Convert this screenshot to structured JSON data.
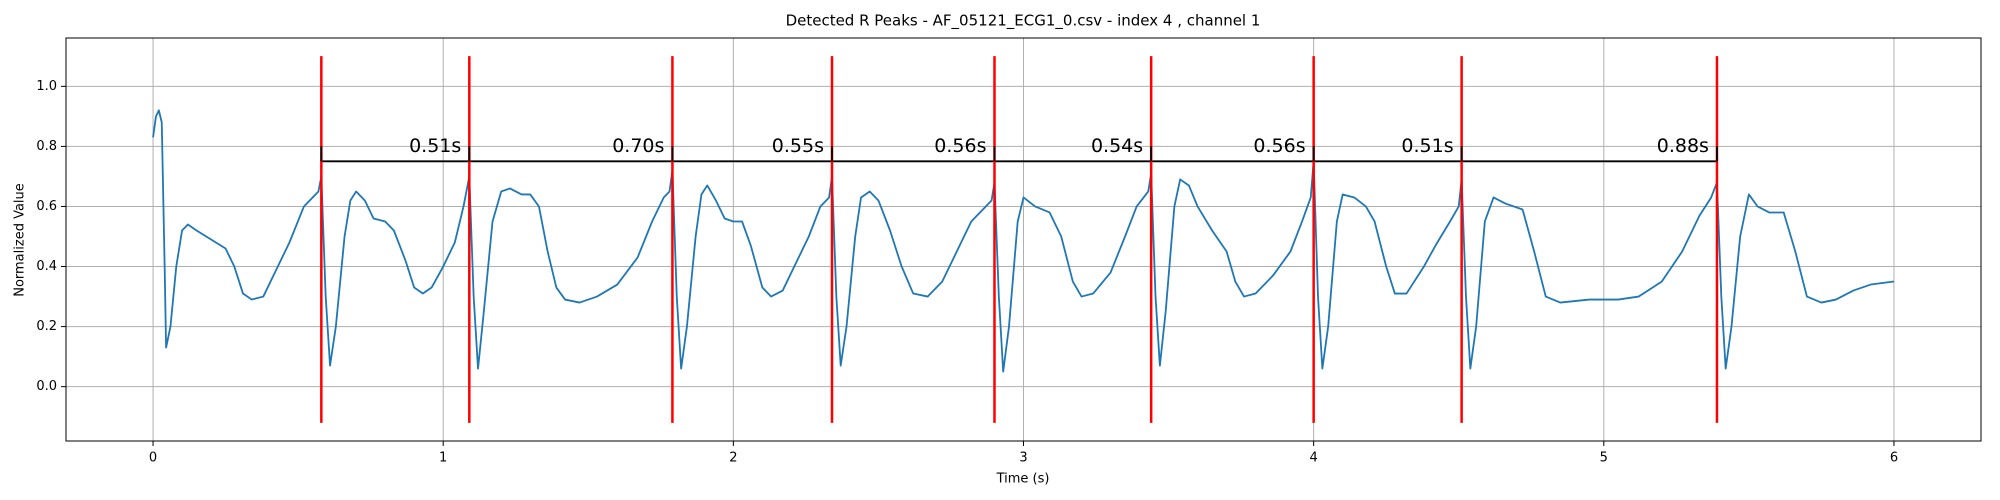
{
  "chart_data": {
    "type": "line",
    "title": "Detected R Peaks - AF_05121_ECG1_0.csv - index 4 , channel 1",
    "xlabel": "Time (s)",
    "ylabel": "Normalized Value",
    "xlim": [
      -0.3,
      6.3
    ],
    "ylim": [
      -0.181,
      1.161
    ],
    "xticks": [
      0,
      1,
      2,
      3,
      4,
      5,
      6
    ],
    "yticks": [
      {
        "value": 0,
        "label": "0.0"
      },
      0.2,
      0.4,
      0.6,
      0.8,
      {
        "value": 1,
        "label": "1.0"
      }
    ],
    "grid": true,
    "x": [
      0,
      0.01,
      0.02,
      0.03,
      0.04,
      0.045,
      0.06,
      0.08,
      0.1,
      0.12,
      0.15,
      0.2,
      0.25,
      0.28,
      0.31,
      0.34,
      0.38,
      0.42,
      0.47,
      0.52,
      0.55,
      0.57,
      0.58,
      0.595,
      0.61,
      0.63,
      0.66,
      0.68,
      0.7,
      0.73,
      0.76,
      0.8,
      0.83,
      0.87,
      0.9,
      0.93,
      0.96,
      1.0,
      1.04,
      1.07,
      1.09,
      1.105,
      1.12,
      1.14,
      1.17,
      1.2,
      1.23,
      1.27,
      1.3,
      1.33,
      1.36,
      1.39,
      1.42,
      1.47,
      1.53,
      1.6,
      1.67,
      1.72,
      1.76,
      1.78,
      1.79,
      1.805,
      1.82,
      1.84,
      1.87,
      1.89,
      1.91,
      1.94,
      1.97,
      2.0,
      2.03,
      2.06,
      2.1,
      2.13,
      2.17,
      2.22,
      2.26,
      2.3,
      2.33,
      2.34,
      2.355,
      2.37,
      2.39,
      2.42,
      2.44,
      2.47,
      2.5,
      2.54,
      2.58,
      2.62,
      2.67,
      2.72,
      2.77,
      2.82,
      2.87,
      2.89,
      2.9,
      2.915,
      2.93,
      2.95,
      2.98,
      3.0,
      3.04,
      3.09,
      3.13,
      3.17,
      3.2,
      3.24,
      3.3,
      3.35,
      3.39,
      3.43,
      3.44,
      3.455,
      3.47,
      3.49,
      3.52,
      3.54,
      3.57,
      3.6,
      3.65,
      3.7,
      3.73,
      3.76,
      3.8,
      3.86,
      3.92,
      3.96,
      3.99,
      4.0,
      4.015,
      4.03,
      4.05,
      4.08,
      4.1,
      4.14,
      4.18,
      4.21,
      4.25,
      4.28,
      4.32,
      4.38,
      4.42,
      4.47,
      4.5,
      4.51,
      4.525,
      4.54,
      4.56,
      4.59,
      4.62,
      4.66,
      4.72,
      4.76,
      4.8,
      4.85,
      4.95,
      5.05,
      5.12,
      5.2,
      5.27,
      5.33,
      5.37,
      5.39,
      5.405,
      5.42,
      5.44,
      5.47,
      5.5,
      5.53,
      5.57,
      5.62,
      5.66,
      5.7,
      5.75,
      5.8,
      5.86,
      5.92,
      6.0
    ],
    "series": [
      {
        "color": "#1f77b4",
        "values": [
          0.83,
          0.9,
          0.92,
          0.88,
          0.4,
          0.13,
          0.2,
          0.4,
          0.52,
          0.54,
          0.52,
          0.49,
          0.46,
          0.4,
          0.31,
          0.29,
          0.3,
          0.38,
          0.48,
          0.6,
          0.63,
          0.65,
          0.7,
          0.3,
          0.07,
          0.2,
          0.5,
          0.62,
          0.65,
          0.62,
          0.56,
          0.55,
          0.52,
          0.42,
          0.33,
          0.31,
          0.33,
          0.4,
          0.48,
          0.6,
          0.7,
          0.3,
          0.06,
          0.25,
          0.55,
          0.65,
          0.66,
          0.64,
          0.64,
          0.6,
          0.45,
          0.33,
          0.29,
          0.28,
          0.3,
          0.34,
          0.43,
          0.55,
          0.63,
          0.65,
          0.72,
          0.3,
          0.06,
          0.2,
          0.5,
          0.64,
          0.67,
          0.62,
          0.56,
          0.55,
          0.55,
          0.47,
          0.33,
          0.3,
          0.32,
          0.42,
          0.5,
          0.6,
          0.63,
          0.7,
          0.3,
          0.07,
          0.2,
          0.5,
          0.63,
          0.65,
          0.62,
          0.52,
          0.4,
          0.31,
          0.3,
          0.35,
          0.45,
          0.55,
          0.6,
          0.62,
          0.68,
          0.3,
          0.05,
          0.2,
          0.55,
          0.63,
          0.6,
          0.58,
          0.5,
          0.35,
          0.3,
          0.31,
          0.38,
          0.5,
          0.6,
          0.65,
          0.71,
          0.3,
          0.07,
          0.25,
          0.6,
          0.69,
          0.67,
          0.6,
          0.52,
          0.45,
          0.35,
          0.3,
          0.31,
          0.37,
          0.45,
          0.55,
          0.63,
          0.75,
          0.3,
          0.06,
          0.2,
          0.55,
          0.64,
          0.63,
          0.6,
          0.55,
          0.4,
          0.31,
          0.31,
          0.4,
          0.47,
          0.55,
          0.6,
          0.69,
          0.3,
          0.06,
          0.2,
          0.55,
          0.63,
          0.61,
          0.59,
          0.45,
          0.3,
          0.28,
          0.29,
          0.29,
          0.3,
          0.35,
          0.45,
          0.57,
          0.63,
          0.68,
          0.3,
          0.06,
          0.2,
          0.5,
          0.64,
          0.6,
          0.58,
          0.58,
          0.45,
          0.3,
          0.28,
          0.29,
          0.32,
          0.34,
          0.35
        ]
      }
    ],
    "peaks": {
      "color": "#ff0000",
      "x": [
        0.58,
        1.09,
        1.79,
        2.34,
        2.9,
        3.44,
        4.0,
        4.51,
        5.39
      ]
    },
    "intervals": {
      "color": "#000000",
      "values": [
        0.51,
        0.7,
        0.55,
        0.56,
        0.54,
        0.56,
        0.51,
        0.88
      ],
      "value_labels": [
        "0.51s",
        "0.70s",
        "0.55s",
        "0.56s",
        "0.54s",
        "0.56s",
        "0.51s",
        "0.88s"
      ]
    }
  }
}
